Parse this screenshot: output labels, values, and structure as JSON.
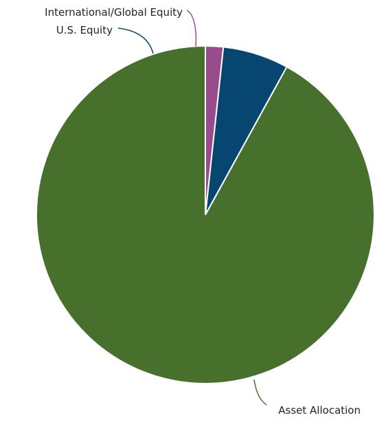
{
  "chart_data": {
    "type": "pie",
    "title": "",
    "start_angle_deg": 0,
    "direction": "counterclockwise",
    "slices": [
      {
        "label": "Asset Allocation",
        "value": 92.0,
        "color": "#48702d"
      },
      {
        "label": "U.S. Equity",
        "value": 6.3,
        "color": "#064670"
      },
      {
        "label": "International/Global Equity",
        "value": 1.7,
        "color": "#974c8e"
      }
    ]
  }
}
